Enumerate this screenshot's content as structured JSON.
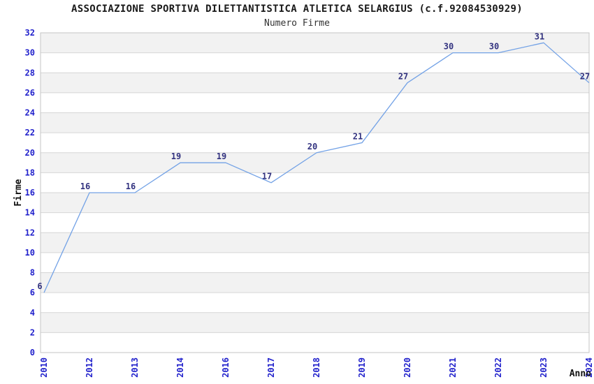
{
  "header": {
    "title": "ASSOCIAZIONE SPORTIVA DILETTANTISTICA ATLETICA SELARGIUS (c.f.92084530929)",
    "subtitle": "Numero Firme"
  },
  "chart_data": {
    "type": "line",
    "title": "ASSOCIAZIONE SPORTIVA DILETTANTISTICA ATLETICA SELARGIUS (c.f.92084530929)",
    "subtitle": "Numero Firme",
    "categories": [
      "2010",
      "2012",
      "2013",
      "2014",
      "2016",
      "2017",
      "2018",
      "2019",
      "2020",
      "2021",
      "2022",
      "2023",
      "2024"
    ],
    "values": [
      6,
      16,
      16,
      19,
      19,
      17,
      20,
      21,
      27,
      30,
      30,
      31,
      27
    ],
    "xlabel": "Anno",
    "ylabel": "Firme",
    "ylim": [
      0,
      32
    ],
    "ytick_step": 2,
    "grid": true,
    "legend": "none",
    "colors": {
      "line": "#73a2e6",
      "data_label": "#333380",
      "tick_label": "#2222cc",
      "axis_title": "#111111",
      "title_text": "#1a1a1a",
      "band_gray": "#f2f2f2",
      "band_white": "#ffffff",
      "gridline": "#d6d6d6",
      "frame": "#c6c6c6",
      "background": "#ffffff"
    }
  }
}
